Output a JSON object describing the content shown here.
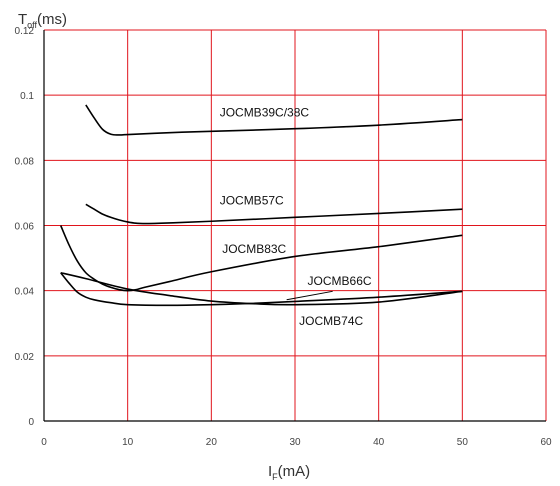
{
  "chart_data": {
    "type": "line",
    "title": "",
    "ylabel": {
      "main": "T",
      "sub": "off",
      "unit": "(ms)"
    },
    "xlabel": {
      "main": "I",
      "sub": "F",
      "unit": "(mA)"
    },
    "xlim": [
      0,
      60
    ],
    "ylim": [
      0,
      0.12
    ],
    "xticks": [
      "0",
      "10",
      "20",
      "30",
      "40",
      "50",
      "60"
    ],
    "yticks": [
      "0",
      "0.02",
      "0.04",
      "0.06",
      "0.08",
      "0.1",
      "0.12"
    ],
    "grid": true,
    "colors": {
      "grid": "#e0141c",
      "line": "#000000",
      "axis": "#000000"
    },
    "series": [
      {
        "name": "JOCMB39C/38C",
        "x": [
          5,
          6,
          7,
          8,
          9,
          10,
          15,
          20,
          30,
          40,
          50
        ],
        "y": [
          0.097,
          0.093,
          0.0895,
          0.088,
          0.0878,
          0.0879,
          0.0885,
          0.0889,
          0.0897,
          0.0908,
          0.0925
        ]
      },
      {
        "name": "JOCMB57C",
        "x": [
          5,
          6,
          7,
          8,
          9,
          10,
          11,
          12,
          15,
          20,
          30,
          40,
          50
        ],
        "y": [
          0.0665,
          0.065,
          0.0635,
          0.0625,
          0.0617,
          0.0611,
          0.0607,
          0.0606,
          0.0608,
          0.0613,
          0.0625,
          0.0637,
          0.065
        ]
      },
      {
        "name": "JOCMB83C",
        "x": [
          2,
          3,
          4,
          5,
          6,
          7,
          8,
          9,
          10,
          11,
          12,
          15,
          20,
          30,
          40,
          50
        ],
        "y": [
          0.06,
          0.054,
          0.049,
          0.0455,
          0.0435,
          0.042,
          0.041,
          0.0403,
          0.04,
          0.0403,
          0.041,
          0.0428,
          0.0458,
          0.0505,
          0.0535,
          0.057
        ]
      },
      {
        "name": "JOCMB66C",
        "x": [
          2,
          3,
          4,
          5,
          6,
          8,
          10,
          15,
          20,
          25,
          30,
          40,
          50
        ],
        "y": [
          0.0455,
          0.0423,
          0.0395,
          0.038,
          0.0372,
          0.0363,
          0.0357,
          0.0355,
          0.0357,
          0.0361,
          0.0367,
          0.038,
          0.0398
        ]
      },
      {
        "name": "JOCMB74C",
        "x": [
          2,
          5,
          10,
          15,
          20,
          25,
          30,
          40,
          50
        ],
        "y": [
          0.0455,
          0.0437,
          0.0405,
          0.0385,
          0.0368,
          0.036,
          0.0357,
          0.0365,
          0.0398
        ]
      }
    ],
    "annotations": [
      {
        "text": "JOCMB39C/38C",
        "x": 21,
        "y": 0.0935
      },
      {
        "text": "JOCMB57C",
        "x": 21,
        "y": 0.0665
      },
      {
        "text": "JOCMB83C",
        "x": 21.3,
        "y": 0.0515
      },
      {
        "text": "JOCMB66C",
        "x": 31.5,
        "y": 0.0418
      },
      {
        "text": "JOCMB74C",
        "x": 30.5,
        "y": 0.0295
      }
    ],
    "leader_lines": [
      {
        "label": "JOCMB66C",
        "from": [
          34.5,
          0.0398
        ],
        "to": [
          29,
          0.0372
        ]
      }
    ]
  }
}
